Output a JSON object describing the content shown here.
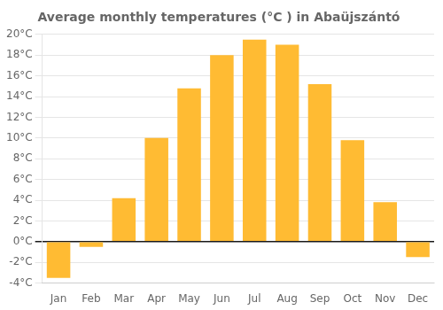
{
  "chart_data": {
    "type": "bar",
    "title": "Average monthly temperatures (°C ) in Abaüjszántó",
    "categories": [
      "Jan",
      "Feb",
      "Mar",
      "Apr",
      "May",
      "Jun",
      "Jul",
      "Aug",
      "Sep",
      "Oct",
      "Nov",
      "Dec"
    ],
    "values": [
      -3.5,
      -0.5,
      4.2,
      10.0,
      14.8,
      18.0,
      19.5,
      19.0,
      15.2,
      9.8,
      3.8,
      -1.5
    ],
    "color": "#FFBB33",
    "ylim": [
      -4,
      20
    ],
    "yticks": [
      {
        "value": -4,
        "label": "-4°C"
      },
      {
        "value": -2,
        "label": "-2°C"
      },
      {
        "value": 0,
        "label": "0°C"
      },
      {
        "value": 2,
        "label": "2°C"
      },
      {
        "value": 4,
        "label": "4°C"
      },
      {
        "value": 6,
        "label": "6°C"
      },
      {
        "value": 8,
        "label": "8°C"
      },
      {
        "value": 10,
        "label": "10°C"
      },
      {
        "value": 12,
        "label": "12°C"
      },
      {
        "value": 14,
        "label": "14°C"
      },
      {
        "value": 16,
        "label": "16°C"
      },
      {
        "value": 18,
        "label": "18°C"
      },
      {
        "value": 20,
        "label": "20°C"
      }
    ],
    "grid": true
  }
}
